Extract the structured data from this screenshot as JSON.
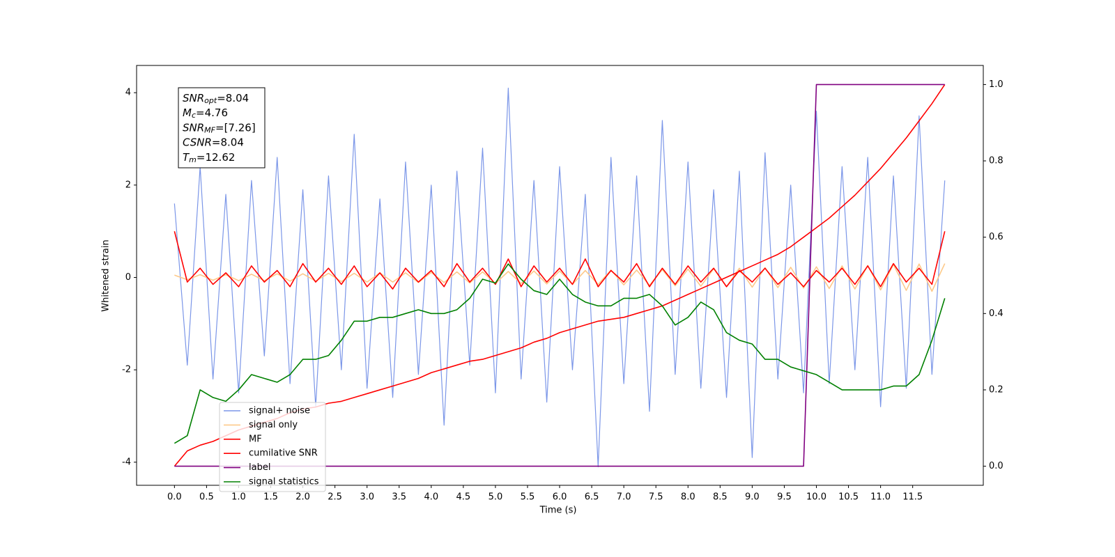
{
  "chart_data": {
    "type": "line",
    "xlabel": "Time (s)",
    "ylabel": "Whitened strain",
    "annotation": [
      {
        "symbol": "SNR",
        "subscript": "opt",
        "text": "=8.04"
      },
      {
        "symbol": "M",
        "subscript": "c",
        "text": "=4.76"
      },
      {
        "symbol": "SNR",
        "subscript": "MF",
        "text": "=[7.26]"
      },
      {
        "symbol": "CSNR",
        "text": "=8.04"
      },
      {
        "symbol": "T",
        "subscript": "m",
        "text": "=12.62"
      }
    ],
    "xlim": [
      -0.59,
      12.6
    ],
    "ylim": [
      -4.5,
      4.59
    ],
    "y2lim": [
      -0.05,
      1.05
    ],
    "xticks": [
      {
        "value": 0,
        "label": "0.0"
      },
      0.5,
      {
        "value": 1,
        "label": "1.0"
      },
      1.5,
      {
        "value": 2,
        "label": "2.0"
      },
      2.5,
      {
        "value": 3,
        "label": "3.0"
      },
      3.5,
      {
        "value": 4,
        "label": "4.0"
      },
      4.5,
      {
        "value": 5,
        "label": "5.0"
      },
      5.5,
      {
        "value": 6,
        "label": "6.0"
      },
      6.5,
      {
        "value": 7,
        "label": "7.0"
      },
      7.5,
      {
        "value": 8,
        "label": "8.0"
      },
      8.5,
      {
        "value": 9,
        "label": "9.0"
      },
      9.5,
      {
        "value": 10,
        "label": "10.0"
      },
      10.5,
      {
        "value": 11,
        "label": "11.0"
      },
      11.5
    ],
    "yticks": [
      -4,
      -2,
      0,
      2,
      4
    ],
    "y2ticks": [
      {
        "value": 0,
        "label": "0.0"
      },
      0.2,
      0.4,
      0.6,
      0.8,
      {
        "value": 1,
        "label": "1.0"
      }
    ],
    "legend": "lower left",
    "x": [
      0,
      0.2,
      0.4,
      0.6,
      0.8,
      1,
      1.2,
      1.4,
      1.6,
      1.8,
      2,
      2.2,
      2.4,
      2.6,
      2.8,
      3,
      3.2,
      3.4,
      3.6,
      3.8,
      4,
      4.2,
      4.4,
      4.6,
      4.8,
      5,
      5.2,
      5.4,
      5.6,
      5.8,
      6,
      6.2,
      6.4,
      6.6,
      6.8,
      7,
      7.2,
      7.4,
      7.6,
      7.8,
      8,
      8.2,
      8.4,
      8.6,
      8.8,
      9,
      9.2,
      9.4,
      9.6,
      9.8,
      10,
      10.2,
      10.4,
      10.6,
      10.8,
      11,
      11.2,
      11.4,
      11.6,
      11.8,
      12
    ],
    "series": [
      {
        "name": "signal+ noise",
        "color": "#7b96e8",
        "values": [
          1.6,
          -1.9,
          2.4,
          -2.2,
          1.8,
          -2.5,
          2.1,
          -1.7,
          2.6,
          -2.3,
          1.9,
          -2.8,
          2.2,
          -2.0,
          3.1,
          -2.4,
          1.7,
          -2.6,
          2.5,
          -2.1,
          2.0,
          -3.2,
          2.3,
          -1.9,
          2.8,
          -2.5,
          4.1,
          -2.2,
          2.1,
          -2.7,
          2.4,
          -2.0,
          1.8,
          -4.1,
          2.6,
          -2.3,
          2.2,
          -2.9,
          3.4,
          -2.1,
          2.5,
          -2.4,
          1.9,
          -2.6,
          2.3,
          -3.9,
          2.7,
          -2.2,
          2.0,
          -2.5,
          3.6,
          -2.3,
          2.4,
          -2.0,
          2.6,
          -2.8,
          2.2,
          -2.4,
          3.5,
          -2.1,
          2.1
        ]
      },
      {
        "name": "signal only",
        "color": "#fdc98a",
        "values": [
          0.05,
          -0.05,
          0.06,
          -0.06,
          0.06,
          -0.07,
          0.07,
          -0.07,
          0.08,
          -0.08,
          0.08,
          -0.08,
          0.09,
          -0.09,
          0.09,
          -0.1,
          0.1,
          -0.1,
          0.1,
          -0.11,
          0.11,
          -0.11,
          0.12,
          -0.12,
          0.12,
          -0.13,
          0.13,
          -0.13,
          0.14,
          -0.14,
          0.14,
          -0.15,
          0.15,
          -0.15,
          0.16,
          -0.16,
          0.16,
          -0.17,
          0.17,
          -0.18,
          0.18,
          -0.19,
          0.19,
          -0.2,
          0.2,
          -0.21,
          0.21,
          -0.22,
          0.22,
          -0.23,
          0.23,
          -0.24,
          0.25,
          -0.25,
          0.26,
          -0.27,
          0.28,
          -0.28,
          0.29,
          -0.3,
          0.3
        ]
      },
      {
        "name": "MF",
        "color": "#ff0000",
        "values": [
          1.0,
          -0.1,
          0.2,
          -0.15,
          0.1,
          -0.2,
          0.25,
          -0.1,
          0.15,
          -0.2,
          0.3,
          -0.1,
          0.2,
          -0.15,
          0.25,
          -0.2,
          0.1,
          -0.25,
          0.2,
          -0.1,
          0.15,
          -0.2,
          0.3,
          -0.1,
          0.2,
          -0.15,
          0.4,
          -0.2,
          0.25,
          -0.1,
          0.2,
          -0.15,
          0.4,
          -0.2,
          0.15,
          -0.1,
          0.3,
          -0.2,
          0.2,
          -0.15,
          0.25,
          -0.1,
          0.2,
          -0.2,
          0.15,
          -0.1,
          0.2,
          -0.15,
          0.1,
          -0.2,
          0.15,
          -0.1,
          0.2,
          -0.15,
          0.25,
          -0.2,
          0.3,
          -0.1,
          0.2,
          -0.15,
          1.0
        ]
      },
      {
        "name": "cumilative SNR",
        "color": "#ff0000",
        "axis": "y2",
        "values": [
          0,
          0.04,
          0.055,
          0.065,
          0.08,
          0.095,
          0.105,
          0.115,
          0.125,
          0.14,
          0.15,
          0.155,
          0.165,
          0.17,
          0.18,
          0.19,
          0.2,
          0.21,
          0.22,
          0.23,
          0.245,
          0.255,
          0.265,
          0.275,
          0.28,
          0.29,
          0.3,
          0.31,
          0.325,
          0.335,
          0.35,
          0.36,
          0.37,
          0.38,
          0.385,
          0.39,
          0.4,
          0.41,
          0.42,
          0.435,
          0.45,
          0.465,
          0.48,
          0.495,
          0.51,
          0.525,
          0.54,
          0.555,
          0.575,
          0.6,
          0.625,
          0.65,
          0.68,
          0.71,
          0.745,
          0.78,
          0.82,
          0.86,
          0.905,
          0.95,
          1.0
        ]
      },
      {
        "name": "label",
        "color": "#800080",
        "axis": "y2",
        "values": [
          0,
          0,
          0,
          0,
          0,
          0,
          0,
          0,
          0,
          0,
          0,
          0,
          0,
          0,
          0,
          0,
          0,
          0,
          0,
          0,
          0,
          0,
          0,
          0,
          0,
          0,
          0,
          0,
          0,
          0,
          0,
          0,
          0,
          0,
          0,
          0,
          0,
          0,
          0,
          0,
          0,
          0,
          0,
          0,
          0,
          0,
          0,
          0,
          0,
          0,
          1,
          1,
          1,
          1,
          1,
          1,
          1,
          1,
          1,
          1,
          1
        ]
      },
      {
        "name": "signal statistics",
        "color": "#008000",
        "axis": "y2",
        "values": [
          0.06,
          0.08,
          0.2,
          0.18,
          0.17,
          0.2,
          0.24,
          0.23,
          0.22,
          0.24,
          0.28,
          0.28,
          0.29,
          0.33,
          0.38,
          0.38,
          0.39,
          0.39,
          0.4,
          0.41,
          0.4,
          0.4,
          0.41,
          0.44,
          0.49,
          0.48,
          0.53,
          0.49,
          0.46,
          0.45,
          0.49,
          0.45,
          0.43,
          0.42,
          0.42,
          0.44,
          0.44,
          0.45,
          0.42,
          0.37,
          0.39,
          0.43,
          0.41,
          0.35,
          0.33,
          0.32,
          0.28,
          0.28,
          0.26,
          0.25,
          0.24,
          0.22,
          0.2,
          0.2,
          0.2,
          0.2,
          0.21,
          0.21,
          0.24,
          0.33,
          0.44
        ]
      }
    ]
  }
}
